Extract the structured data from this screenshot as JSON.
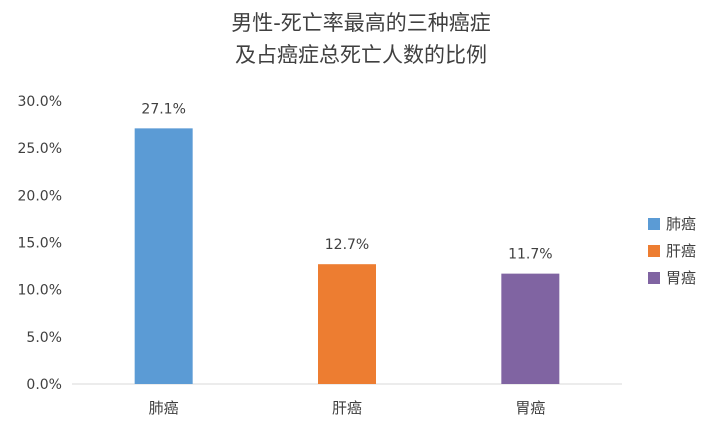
{
  "chart_data": {
    "type": "bar",
    "title_lines": [
      "男性-死亡率最高的三种癌症",
      "及占癌症总死亡人数的比例"
    ],
    "categories": [
      "肺癌",
      "肝癌",
      "胃癌"
    ],
    "values": [
      27.1,
      12.7,
      11.7
    ],
    "data_labels": [
      "27.1%",
      "12.7%",
      "11.7%"
    ],
    "colors": [
      "#5B9BD5",
      "#ED7D31",
      "#8064A2"
    ],
    "ylim": [
      0,
      30
    ],
    "yticks": [
      0,
      5,
      10,
      15,
      20,
      25,
      30
    ],
    "ytick_labels": [
      "0.0%",
      "5.0%",
      "10.0%",
      "15.0%",
      "20.0%",
      "25.0%",
      "30.0%"
    ],
    "xlabel": "",
    "ylabel": "",
    "grid": false,
    "legend": {
      "position": "right",
      "entries": [
        "肺癌",
        "肝癌",
        "胃癌"
      ]
    }
  }
}
